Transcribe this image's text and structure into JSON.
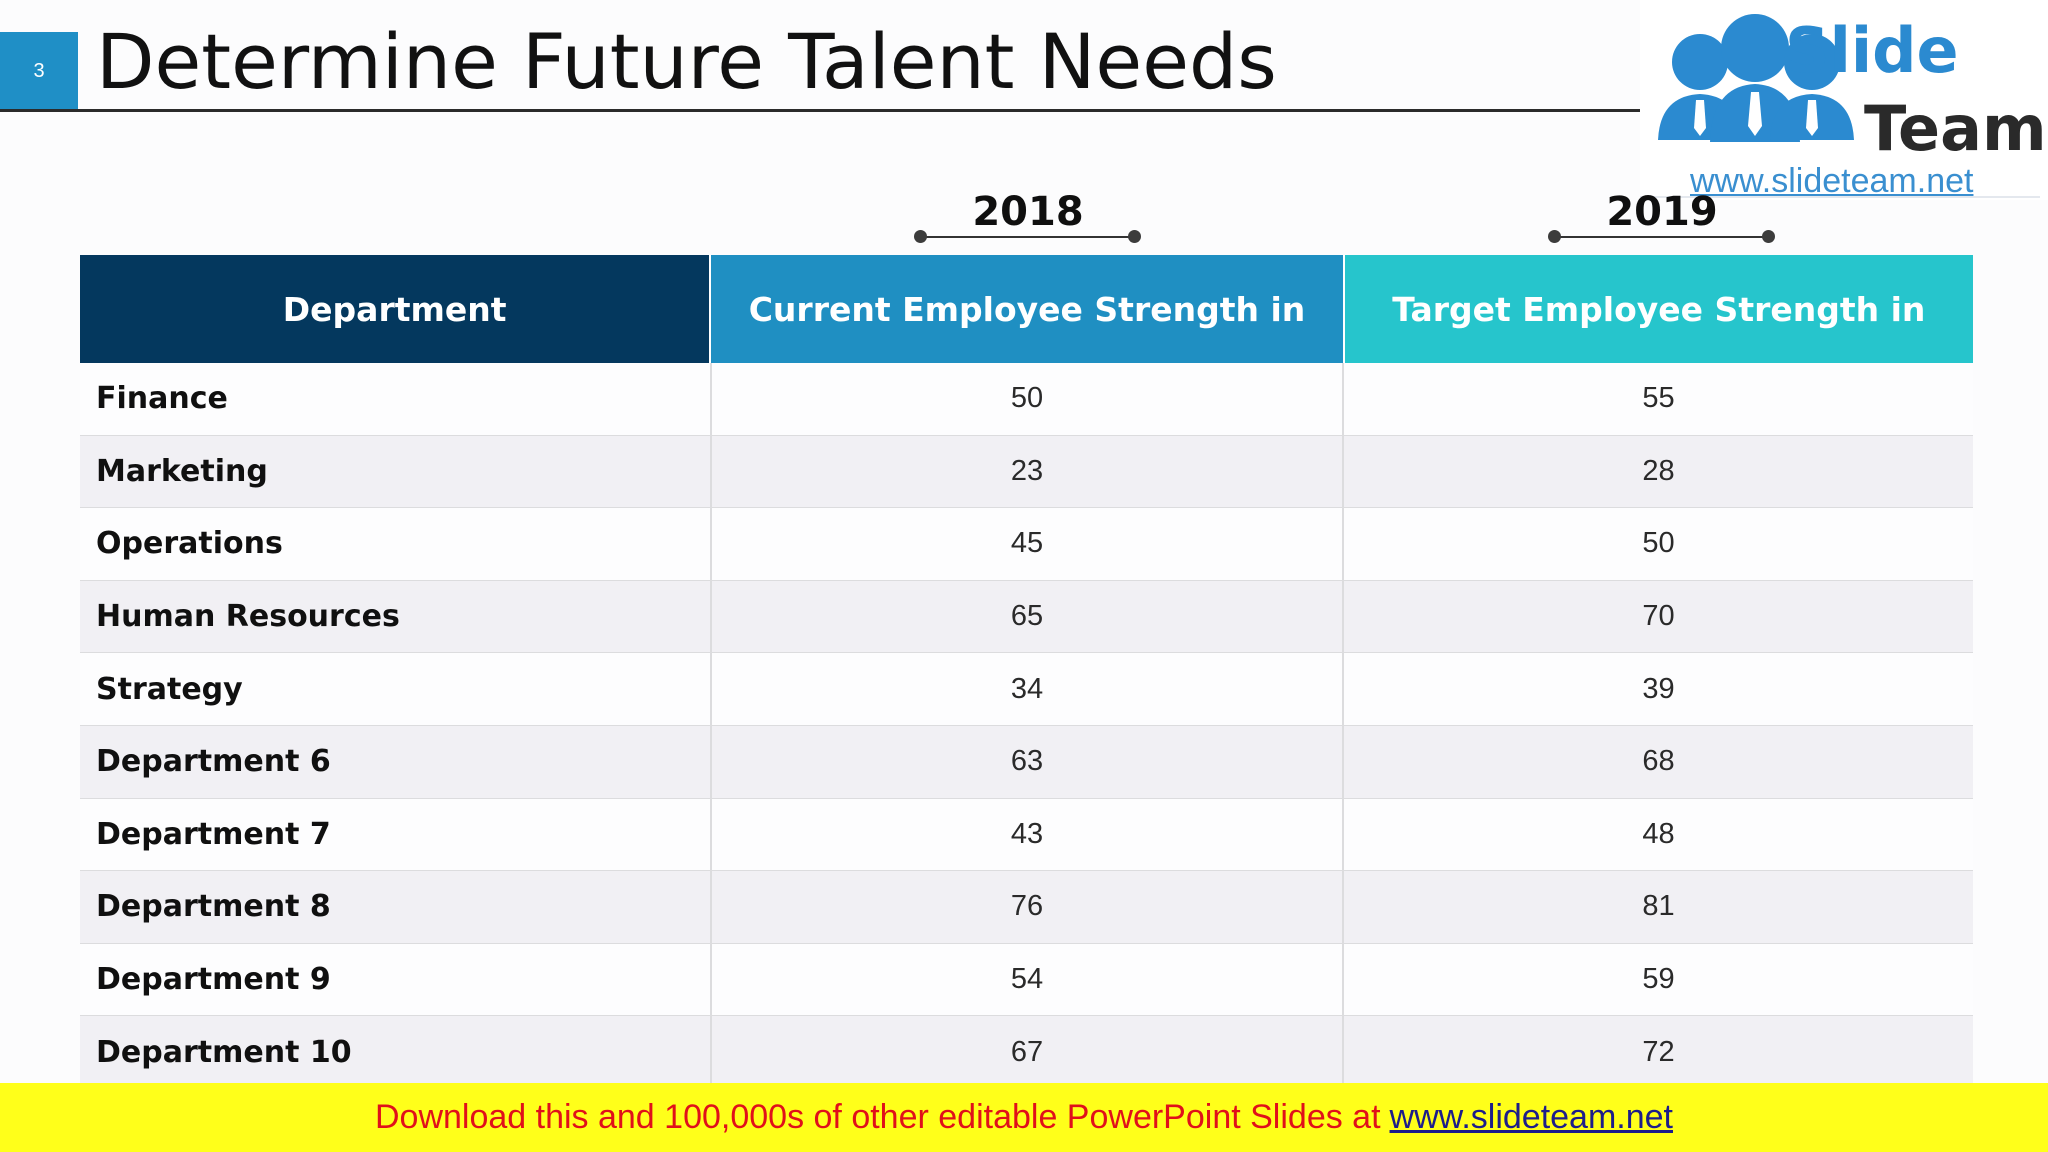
{
  "slide": {
    "number": "3",
    "title": "Determine Future Talent Needs"
  },
  "logo": {
    "word_top": "Slide",
    "word_bottom": "Team",
    "url": "www.slideteam.net",
    "colors": {
      "blue": "#2b8ad0",
      "dark": "#2a2a2a"
    }
  },
  "years": {
    "left": "2018",
    "right": "2019"
  },
  "table": {
    "headers": {
      "department": "Department",
      "current": "Current Employee Strength in",
      "target": "Target Employee Strength in"
    },
    "rows": [
      {
        "department": "Finance",
        "current": "50",
        "target": "55"
      },
      {
        "department": "Marketing",
        "current": "23",
        "target": "28"
      },
      {
        "department": "Operations",
        "current": "45",
        "target": "50"
      },
      {
        "department": "Human Resources",
        "current": "65",
        "target": "70"
      },
      {
        "department": "Strategy",
        "current": "34",
        "target": "39"
      },
      {
        "department": "Department 6",
        "current": "63",
        "target": "68"
      },
      {
        "department": "Department 7",
        "current": "43",
        "target": "48"
      },
      {
        "department": "Department 8",
        "current": "76",
        "target": "81"
      },
      {
        "department": "Department 9",
        "current": "54",
        "target": "59"
      },
      {
        "department": "Department 10",
        "current": "67",
        "target": "72"
      }
    ]
  },
  "banner": {
    "text": "Download this and 100,000s of other editable PowerPoint Slides at",
    "link": "www.slideteam.net"
  },
  "colors": {
    "header_dept": "#04385e",
    "header_current": "#1f8fc2",
    "header_target": "#26c5cc",
    "banner_bg": "#ffff1a",
    "banner_text": "#e0101a"
  }
}
